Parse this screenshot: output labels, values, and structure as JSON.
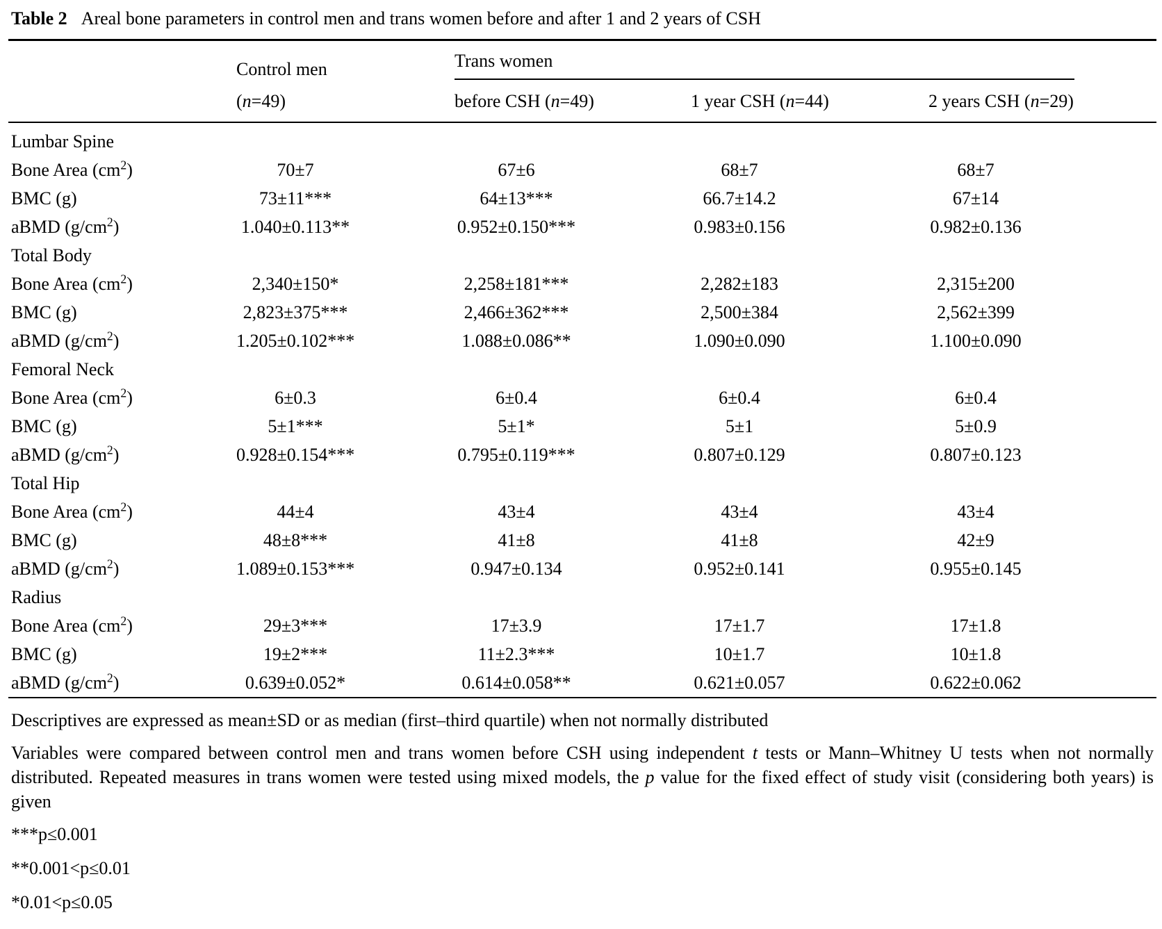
{
  "title": {
    "label": "Table 2",
    "text": "Areal bone parameters in control men and trans women before and after 1 and 2 years of CSH"
  },
  "header": {
    "group1": "Control men",
    "group2": "Trans women",
    "cols": [
      [
        {
          "t": "("
        },
        {
          "t": "n",
          "s": "i"
        },
        {
          "t": "=49)"
        }
      ],
      [
        {
          "t": "before CSH ("
        },
        {
          "t": "n",
          "s": "i"
        },
        {
          "t": "=49)"
        }
      ],
      [
        {
          "t": "1 year CSH ("
        },
        {
          "t": "n",
          "s": "i"
        },
        {
          "t": "=44)"
        }
      ],
      [
        {
          "t": "2 years CSH ("
        },
        {
          "t": "n",
          "s": "i"
        },
        {
          "t": "=29)"
        }
      ]
    ]
  },
  "sections": [
    {
      "name": "Lumbar Spine",
      "rows": [
        {
          "label": [
            {
              "t": "Bone Area (cm"
            },
            {
              "t": "2",
              "s": "sup"
            },
            {
              "t": ")"
            }
          ],
          "values": [
            "70±7",
            "67±6",
            "68±7",
            "68±7"
          ]
        },
        {
          "label": [
            {
              "t": "BMC (g)"
            }
          ],
          "values": [
            "73±11***",
            "64±13***",
            "66.7±14.2",
            "67±14"
          ]
        },
        {
          "label": [
            {
              "t": "aBMD (g/cm"
            },
            {
              "t": "2",
              "s": "sup"
            },
            {
              "t": ")"
            }
          ],
          "values": [
            "1.040±0.113**",
            "0.952±0.150***",
            "0.983±0.156",
            "0.982±0.136"
          ]
        }
      ]
    },
    {
      "name": "Total Body",
      "rows": [
        {
          "label": [
            {
              "t": "Bone Area (cm"
            },
            {
              "t": "2",
              "s": "sup"
            },
            {
              "t": ")"
            }
          ],
          "values": [
            "2,340±150*",
            "2,258±181***",
            "2,282±183",
            "2,315±200"
          ]
        },
        {
          "label": [
            {
              "t": "BMC (g)"
            }
          ],
          "values": [
            "2,823±375***",
            "2,466±362***",
            "2,500±384",
            "2,562±399"
          ]
        },
        {
          "label": [
            {
              "t": "aBMD (g/cm"
            },
            {
              "t": "2",
              "s": "sup"
            },
            {
              "t": ")"
            }
          ],
          "values": [
            "1.205±0.102***",
            "1.088±0.086**",
            "1.090±0.090",
            "1.100±0.090"
          ]
        }
      ]
    },
    {
      "name": "Femoral Neck",
      "rows": [
        {
          "label": [
            {
              "t": "Bone Area (cm"
            },
            {
              "t": "2",
              "s": "sup"
            },
            {
              "t": ")"
            }
          ],
          "values": [
            "6±0.3",
            "6±0.4",
            "6±0.4",
            "6±0.4"
          ]
        },
        {
          "label": [
            {
              "t": "BMC (g)"
            }
          ],
          "values": [
            "5±1***",
            "5±1*",
            "5±1",
            "5±0.9"
          ]
        },
        {
          "label": [
            {
              "t": "aBMD (g/cm"
            },
            {
              "t": "2",
              "s": "sup"
            },
            {
              "t": ")"
            }
          ],
          "values": [
            "0.928±0.154***",
            "0.795±0.119***",
            "0.807±0.129",
            "0.807±0.123"
          ]
        }
      ]
    },
    {
      "name": "Total Hip",
      "rows": [
        {
          "label": [
            {
              "t": "Bone Area (cm"
            },
            {
              "t": "2",
              "s": "sup"
            },
            {
              "t": ")"
            }
          ],
          "values": [
            "44±4",
            "43±4",
            "43±4",
            "43±4"
          ]
        },
        {
          "label": [
            {
              "t": "BMC (g)"
            }
          ],
          "values": [
            "48±8***",
            "41±8",
            "41±8",
            "42±9"
          ]
        },
        {
          "label": [
            {
              "t": "aBMD (g/cm"
            },
            {
              "t": "2",
              "s": "sup"
            },
            {
              "t": ")"
            }
          ],
          "values": [
            "1.089±0.153***",
            "0.947±0.134",
            "0.952±0.141",
            "0.955±0.145"
          ]
        }
      ]
    },
    {
      "name": "Radius",
      "rows": [
        {
          "label": [
            {
              "t": "Bone Area (cm"
            },
            {
              "t": "2",
              "s": "sup"
            },
            {
              "t": ")"
            }
          ],
          "values": [
            "29±3***",
            "17±3.9",
            "17±1.7",
            "17±1.8"
          ]
        },
        {
          "label": [
            {
              "t": "BMC (g)"
            }
          ],
          "values": [
            "19±2***",
            "11±2.3***",
            "10±1.7",
            "10±1.8"
          ]
        },
        {
          "label": [
            {
              "t": "aBMD (g/cm"
            },
            {
              "t": "2",
              "s": "sup"
            },
            {
              "t": ")"
            }
          ],
          "values": [
            "0.639±0.052*",
            "0.614±0.058**",
            "0.621±0.057",
            "0.622±0.062"
          ]
        }
      ]
    }
  ],
  "footnotes": [
    [
      {
        "t": "Descriptives are expressed as mean±SD or as median (first–third quartile) when not normally distributed"
      }
    ],
    [
      {
        "t": "Variables were compared between control men and trans women before CSH using independent "
      },
      {
        "t": "t",
        "s": "i"
      },
      {
        "t": " tests or Mann–Whitney U tests when not normally distributed. Repeated measures in trans women were tested using mixed models, the "
      },
      {
        "t": "p",
        "s": "i"
      },
      {
        "t": " value for the fixed effect of study visit (considering both years) is given"
      }
    ],
    [
      {
        "t": "***p≤0.001"
      }
    ],
    [
      {
        "t": "**0.001<p≤0.01"
      }
    ],
    [
      {
        "t": "*0.01<p≤0.05"
      }
    ]
  ]
}
